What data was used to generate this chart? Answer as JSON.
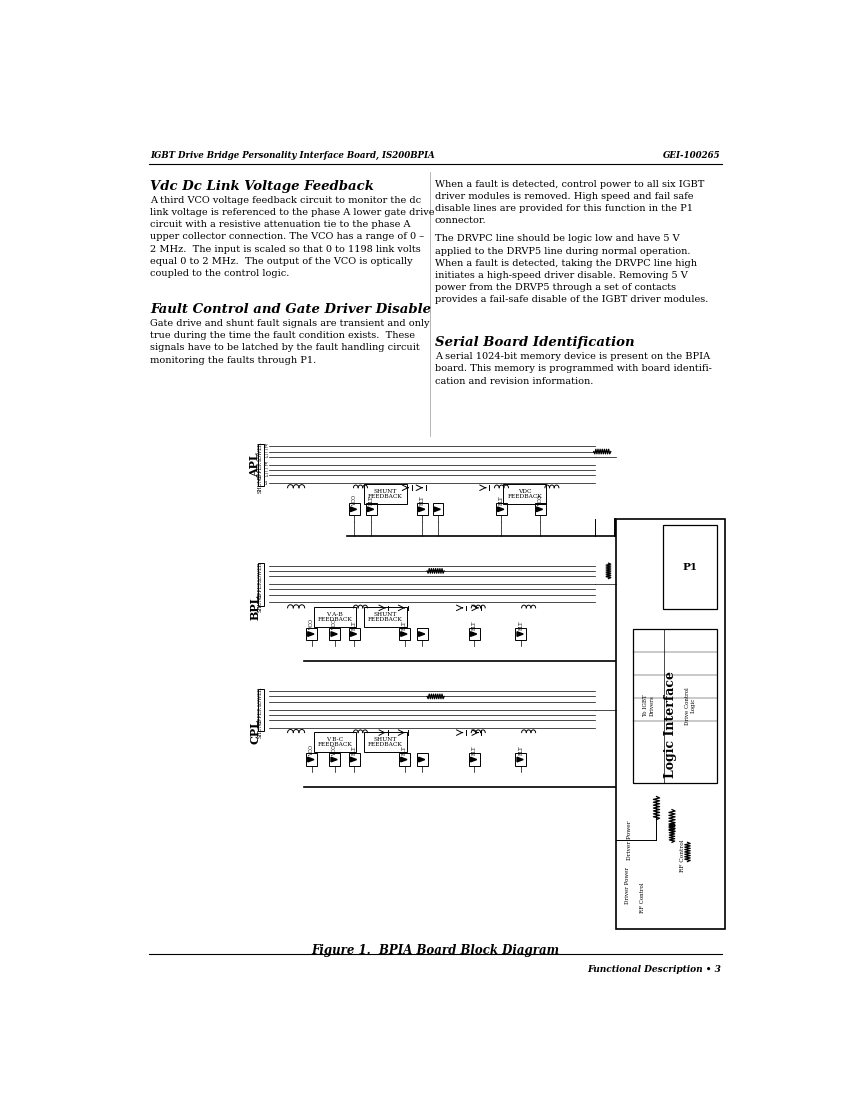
{
  "page_header_left": "IGBT Drive Bridge Personality Interface Board, IS200BPIA",
  "page_header_right": "GEI-100265",
  "page_footer_right": "Functional Description • 3",
  "col1_heading1": "Vdc Dc Link Voltage Feedback",
  "col1_para1": "A third VCO voltage feedback circuit to monitor the dc\nlink voltage is referenced to the phase A lower gate drive\ncircuit with a resistive attenuation tie to the phase A\nupper collector connection. The VCO has a range of 0 –\n2 MHz.  The input is scaled so that 0 to 1198 link volts\nequal 0 to 2 MHz.  The output of the VCO is optically\ncoupled to the control logic.",
  "col1_heading2": "Fault Control and Gate Driver Disable",
  "col1_para2": "Gate drive and shunt fault signals are transient and only\ntrue during the time the fault condition exists.  These\nsignals have to be latched by the fault handling circuit\nmonitoring the faults through P1.",
  "col2_para1": "When a fault is detected, control power to all six IGBT\ndriver modules is removed. High speed and fail safe\ndisable lines are provided for this function in the P1\nconnector.",
  "col2_para2": "The DRVPC line should be logic low and have 5 V\napplied to the DRVP5 line during normal operation.\nWhen a fault is detected, taking the DRVPC line high\ninitiates a high-speed driver disable. Removing 5 V\npower from the DRVP5 through a set of contacts\nprovides a fail-safe disable of the IGBT driver modules.",
  "col2_heading2": "Serial Board Identification",
  "col2_para3": "A serial 1024-bit memory device is present on the BPIA\nboard. This memory is programmed with board identifi-\ncation and revision information.",
  "figure_caption": "Figure 1.  BPIA Board Block Diagram",
  "background_color": "#ffffff",
  "text_color": "#000000"
}
